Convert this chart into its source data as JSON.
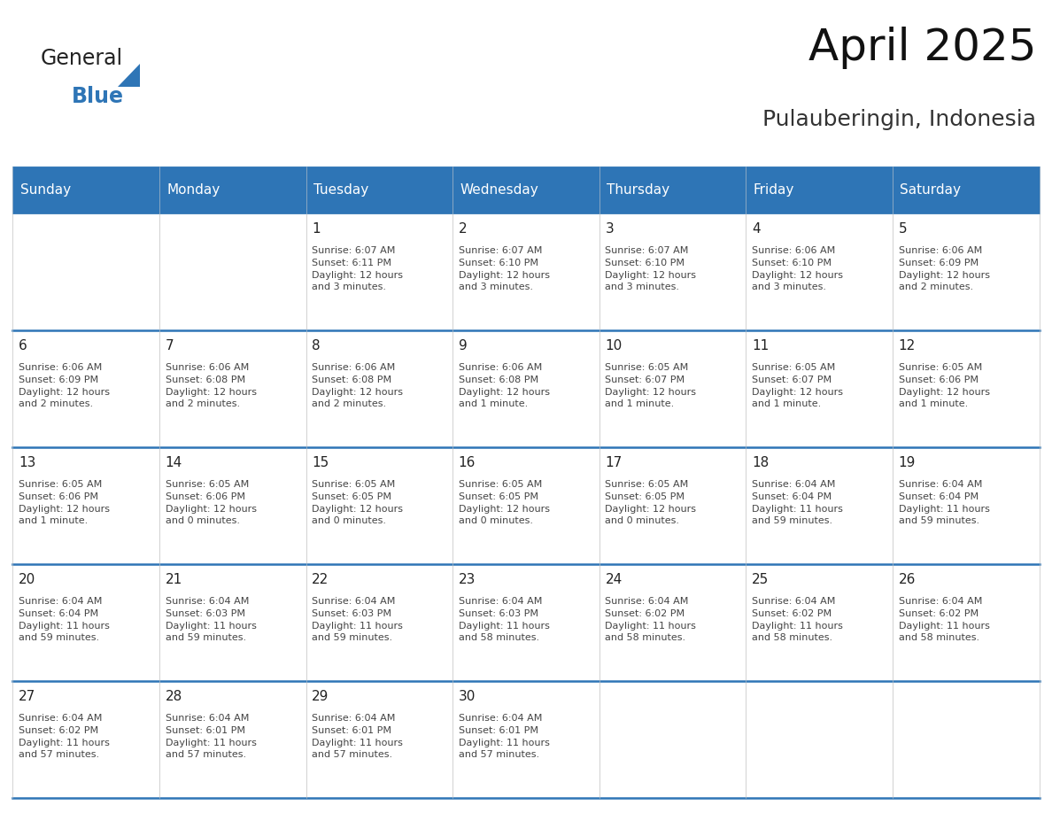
{
  "title": "April 2025",
  "subtitle": "Pulauberingin, Indonesia",
  "header_color": "#2E75B6",
  "header_text_color": "#FFFFFF",
  "border_color": "#2E75B6",
  "text_color": "#333333",
  "days_of_week": [
    "Sunday",
    "Monday",
    "Tuesday",
    "Wednesday",
    "Thursday",
    "Friday",
    "Saturday"
  ],
  "calendar_data": [
    [
      {
        "day": "",
        "info": ""
      },
      {
        "day": "",
        "info": ""
      },
      {
        "day": "1",
        "info": "Sunrise: 6:07 AM\nSunset: 6:11 PM\nDaylight: 12 hours\nand 3 minutes."
      },
      {
        "day": "2",
        "info": "Sunrise: 6:07 AM\nSunset: 6:10 PM\nDaylight: 12 hours\nand 3 minutes."
      },
      {
        "day": "3",
        "info": "Sunrise: 6:07 AM\nSunset: 6:10 PM\nDaylight: 12 hours\nand 3 minutes."
      },
      {
        "day": "4",
        "info": "Sunrise: 6:06 AM\nSunset: 6:10 PM\nDaylight: 12 hours\nand 3 minutes."
      },
      {
        "day": "5",
        "info": "Sunrise: 6:06 AM\nSunset: 6:09 PM\nDaylight: 12 hours\nand 2 minutes."
      }
    ],
    [
      {
        "day": "6",
        "info": "Sunrise: 6:06 AM\nSunset: 6:09 PM\nDaylight: 12 hours\nand 2 minutes."
      },
      {
        "day": "7",
        "info": "Sunrise: 6:06 AM\nSunset: 6:08 PM\nDaylight: 12 hours\nand 2 minutes."
      },
      {
        "day": "8",
        "info": "Sunrise: 6:06 AM\nSunset: 6:08 PM\nDaylight: 12 hours\nand 2 minutes."
      },
      {
        "day": "9",
        "info": "Sunrise: 6:06 AM\nSunset: 6:08 PM\nDaylight: 12 hours\nand 1 minute."
      },
      {
        "day": "10",
        "info": "Sunrise: 6:05 AM\nSunset: 6:07 PM\nDaylight: 12 hours\nand 1 minute."
      },
      {
        "day": "11",
        "info": "Sunrise: 6:05 AM\nSunset: 6:07 PM\nDaylight: 12 hours\nand 1 minute."
      },
      {
        "day": "12",
        "info": "Sunrise: 6:05 AM\nSunset: 6:06 PM\nDaylight: 12 hours\nand 1 minute."
      }
    ],
    [
      {
        "day": "13",
        "info": "Sunrise: 6:05 AM\nSunset: 6:06 PM\nDaylight: 12 hours\nand 1 minute."
      },
      {
        "day": "14",
        "info": "Sunrise: 6:05 AM\nSunset: 6:06 PM\nDaylight: 12 hours\nand 0 minutes."
      },
      {
        "day": "15",
        "info": "Sunrise: 6:05 AM\nSunset: 6:05 PM\nDaylight: 12 hours\nand 0 minutes."
      },
      {
        "day": "16",
        "info": "Sunrise: 6:05 AM\nSunset: 6:05 PM\nDaylight: 12 hours\nand 0 minutes."
      },
      {
        "day": "17",
        "info": "Sunrise: 6:05 AM\nSunset: 6:05 PM\nDaylight: 12 hours\nand 0 minutes."
      },
      {
        "day": "18",
        "info": "Sunrise: 6:04 AM\nSunset: 6:04 PM\nDaylight: 11 hours\nand 59 minutes."
      },
      {
        "day": "19",
        "info": "Sunrise: 6:04 AM\nSunset: 6:04 PM\nDaylight: 11 hours\nand 59 minutes."
      }
    ],
    [
      {
        "day": "20",
        "info": "Sunrise: 6:04 AM\nSunset: 6:04 PM\nDaylight: 11 hours\nand 59 minutes."
      },
      {
        "day": "21",
        "info": "Sunrise: 6:04 AM\nSunset: 6:03 PM\nDaylight: 11 hours\nand 59 minutes."
      },
      {
        "day": "22",
        "info": "Sunrise: 6:04 AM\nSunset: 6:03 PM\nDaylight: 11 hours\nand 59 minutes."
      },
      {
        "day": "23",
        "info": "Sunrise: 6:04 AM\nSunset: 6:03 PM\nDaylight: 11 hours\nand 58 minutes."
      },
      {
        "day": "24",
        "info": "Sunrise: 6:04 AM\nSunset: 6:02 PM\nDaylight: 11 hours\nand 58 minutes."
      },
      {
        "day": "25",
        "info": "Sunrise: 6:04 AM\nSunset: 6:02 PM\nDaylight: 11 hours\nand 58 minutes."
      },
      {
        "day": "26",
        "info": "Sunrise: 6:04 AM\nSunset: 6:02 PM\nDaylight: 11 hours\nand 58 minutes."
      }
    ],
    [
      {
        "day": "27",
        "info": "Sunrise: 6:04 AM\nSunset: 6:02 PM\nDaylight: 11 hours\nand 57 minutes."
      },
      {
        "day": "28",
        "info": "Sunrise: 6:04 AM\nSunset: 6:01 PM\nDaylight: 11 hours\nand 57 minutes."
      },
      {
        "day": "29",
        "info": "Sunrise: 6:04 AM\nSunset: 6:01 PM\nDaylight: 11 hours\nand 57 minutes."
      },
      {
        "day": "30",
        "info": "Sunrise: 6:04 AM\nSunset: 6:01 PM\nDaylight: 11 hours\nand 57 minutes."
      },
      {
        "day": "",
        "info": ""
      },
      {
        "day": "",
        "info": ""
      },
      {
        "day": "",
        "info": ""
      }
    ]
  ],
  "logo_text1": "General",
  "logo_text2": "Blue",
  "logo_color1": "#222222",
  "logo_color2": "#2E75B6",
  "title_fontsize": 36,
  "subtitle_fontsize": 18,
  "header_fontsize": 11,
  "day_num_fontsize": 11,
  "info_fontsize": 8
}
